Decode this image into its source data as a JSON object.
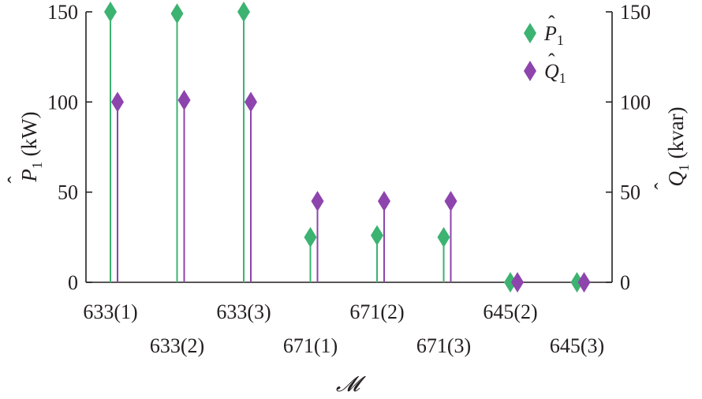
{
  "chart_data": {
    "type": "stem",
    "categories": [
      "633(1)",
      "633(2)",
      "633(3)",
      "671(1)",
      "671(2)",
      "671(3)",
      "645(2)",
      "645(3)"
    ],
    "series": [
      {
        "name": "P̂₁",
        "axis": "left",
        "color": "#3cb371",
        "values": [
          150,
          149,
          150,
          25,
          26,
          25,
          0,
          0
        ]
      },
      {
        "name": "Q̂₁",
        "axis": "right",
        "color": "#8e44ad",
        "values": [
          100,
          101,
          100,
          45,
          45,
          45,
          0,
          0
        ]
      }
    ],
    "left_axis": {
      "label_base": "P",
      "label_hat": "ˆ",
      "label_sub": "1",
      "label_unit": " (kW)",
      "ylim": [
        0,
        150
      ],
      "ticks": [
        "0",
        "50",
        "100",
        "150"
      ]
    },
    "right_axis": {
      "label_base": "Q",
      "label_hat": "ˆ",
      "label_sub": "1",
      "label_unit": " (kvar)",
      "ylim": [
        0,
        150
      ],
      "ticks": [
        "0",
        "50",
        "100",
        "150"
      ]
    },
    "xlabel": "𝓜",
    "legend": {
      "position": "top-right",
      "entries": [
        {
          "base": "P",
          "hat": "ˆ",
          "sub": "1",
          "color": "#3cb371"
        },
        {
          "base": "Q",
          "hat": "ˆ",
          "sub": "1",
          "color": "#8e44ad"
        }
      ]
    },
    "grid": false
  }
}
